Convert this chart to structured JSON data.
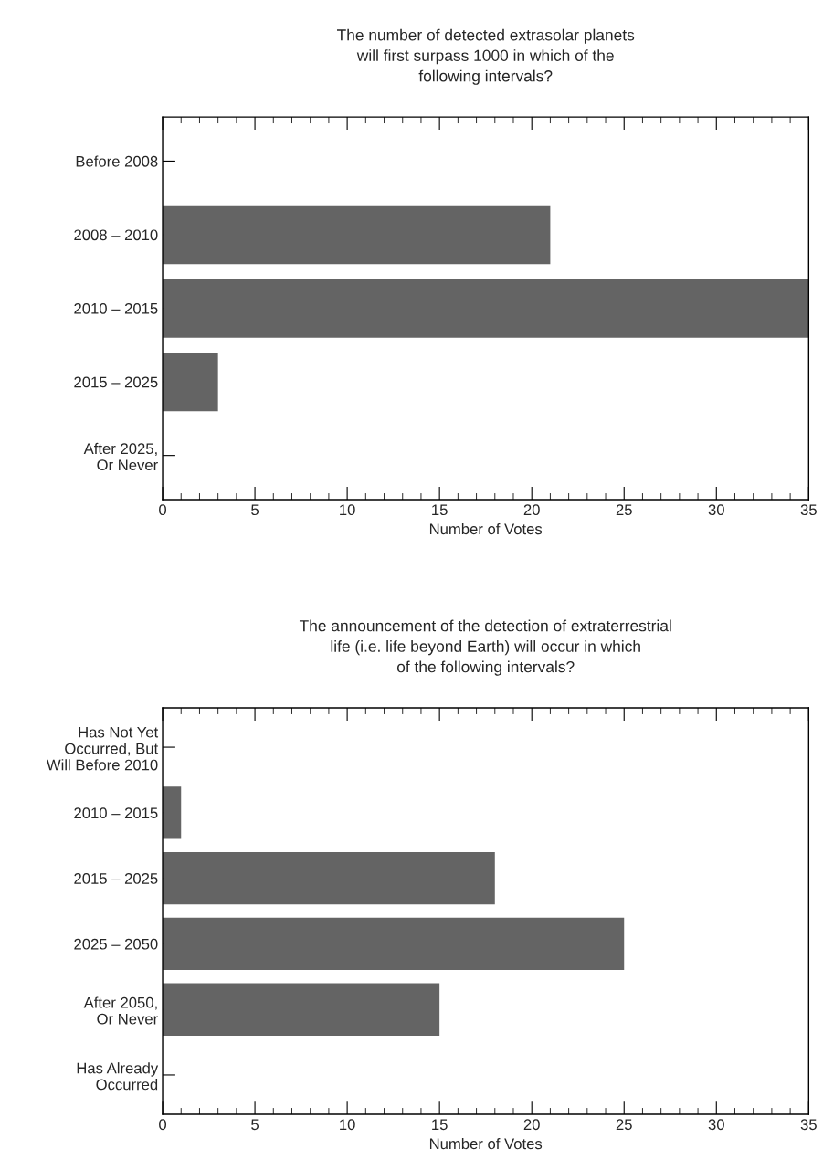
{
  "chart_data": [
    {
      "type": "bar",
      "orientation": "horizontal",
      "title": "The number of detected extrasolar planets\nwill first surpass 1000 in which of the\nfollowing intervals?",
      "xlabel": "Number of Votes",
      "categories": [
        "Before 2008",
        "2008 – 2010",
        "2010 – 2015",
        "2015 – 2025",
        "After 2025,\nOr Never"
      ],
      "values": [
        0,
        21,
        35,
        3,
        0
      ],
      "color": "#646464",
      "xlim": [
        0,
        35
      ],
      "xticks": [
        0,
        5,
        10,
        15,
        20,
        25,
        30,
        35
      ],
      "grid": false
    },
    {
      "type": "bar",
      "orientation": "horizontal",
      "title": "The announcement of the detection of extraterrestrial\nlife (i.e. life beyond Earth) will occur in which\nof the following intervals?",
      "xlabel": "Number of Votes",
      "categories": [
        "Has Not Yet\nOccurred, But\nWill Before 2010",
        "2010 – 2015",
        "2015 – 2025",
        "2025 – 2050",
        "After 2050,\nOr Never",
        "Has Already\nOccurred"
      ],
      "values": [
        0,
        1,
        18,
        25,
        15,
        0
      ],
      "color": "#646464",
      "xlim": [
        0,
        35
      ],
      "xticks": [
        0,
        5,
        10,
        15,
        20,
        25,
        30,
        35
      ],
      "grid": false
    }
  ]
}
